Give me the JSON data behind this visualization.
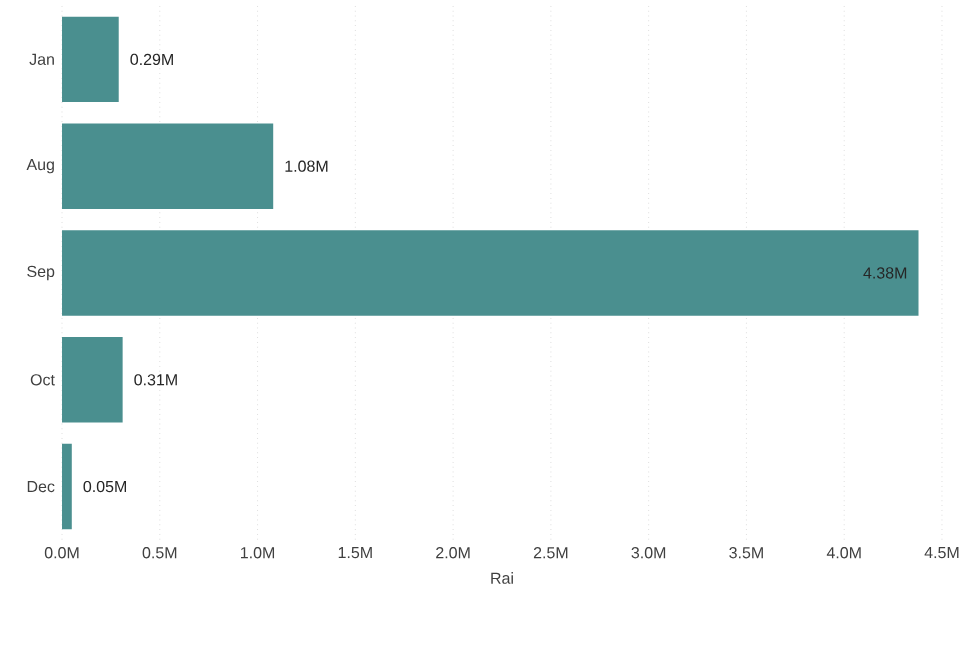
{
  "chart_data": {
    "type": "bar",
    "orientation": "horizontal",
    "xlabel": "Rai",
    "categories": [
      "Jan",
      "Aug",
      "Sep",
      "Oct",
      "Dec"
    ],
    "values": [
      0.29,
      1.08,
      4.38,
      0.31,
      0.05
    ],
    "value_labels": [
      "0.29M",
      "1.08M",
      "4.38M",
      "0.31M",
      "0.05M"
    ],
    "color": "#4a8f8f",
    "xlim": [
      0,
      4.5
    ],
    "xticks": [
      {
        "value": 0,
        "label": "0.0M"
      },
      {
        "value": 0.5,
        "label": "0.5M"
      },
      {
        "value": 1,
        "label": "1.0M"
      },
      {
        "value": 1.5,
        "label": "1.5M"
      },
      {
        "value": 2,
        "label": "2.0M"
      },
      {
        "value": 2.5,
        "label": "2.5M"
      },
      {
        "value": 3,
        "label": "3.0M"
      },
      {
        "value": 3.5,
        "label": "3.5M"
      },
      {
        "value": 4,
        "label": "4.0M"
      },
      {
        "value": 4.5,
        "label": "4.5M"
      }
    ],
    "grid": "x"
  }
}
